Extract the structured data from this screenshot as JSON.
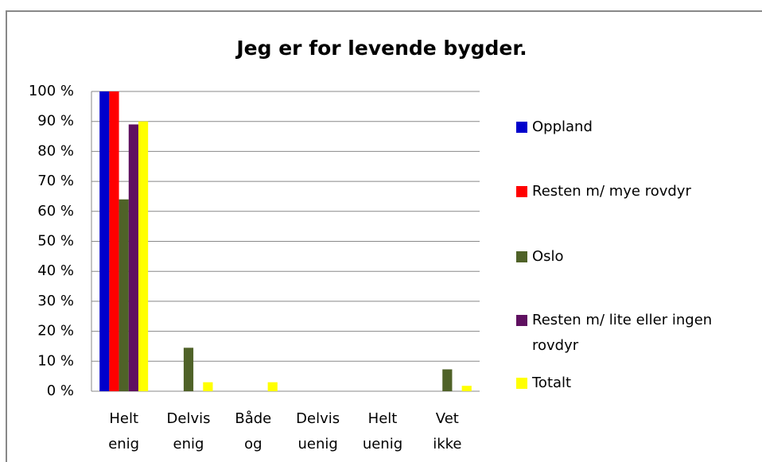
{
  "chart_data": {
    "type": "bar",
    "title": "Jeg er for levende bygder.",
    "categories": [
      "Helt enig",
      "Delvis enig",
      "Både og",
      "Delvis uenig",
      "Helt uenig",
      "Vet ikke"
    ],
    "series": [
      {
        "name": "Oppland",
        "color": "#0000cc",
        "values": [
          100,
          0,
          0,
          0,
          0,
          0
        ]
      },
      {
        "name": "Resten m/ mye rovdyr",
        "color": "#ff0000",
        "values": [
          100,
          0,
          0,
          0,
          0,
          0
        ]
      },
      {
        "name": "Oslo",
        "color": "#4f6228",
        "values": [
          64,
          14.5,
          0,
          0,
          0,
          7.3
        ]
      },
      {
        "name": "Resten m/ lite eller ingen rovdyr",
        "color": "#5f1060",
        "values": [
          89,
          0,
          0,
          0,
          0,
          0
        ]
      },
      {
        "name": "Totalt",
        "color": "#ffff00",
        "values": [
          90,
          3,
          3,
          0,
          0,
          1.8
        ]
      }
    ],
    "ylim": [
      0,
      100
    ],
    "yticks": [
      {
        "value": 0,
        "label": "0 %"
      },
      {
        "value": 10,
        "label": "10 %"
      },
      {
        "value": 20,
        "label": "20 %"
      },
      {
        "value": 30,
        "label": "30 %"
      },
      {
        "value": 40,
        "label": "40 %"
      },
      {
        "value": 50,
        "label": "50 %"
      },
      {
        "value": 60,
        "label": "60 %"
      },
      {
        "value": 70,
        "label": "70 %"
      },
      {
        "value": 80,
        "label": "80 %"
      },
      {
        "value": 90,
        "label": "90 %"
      },
      {
        "value": 100,
        "label": "100 %"
      }
    ],
    "grid": true,
    "legend": "right"
  }
}
